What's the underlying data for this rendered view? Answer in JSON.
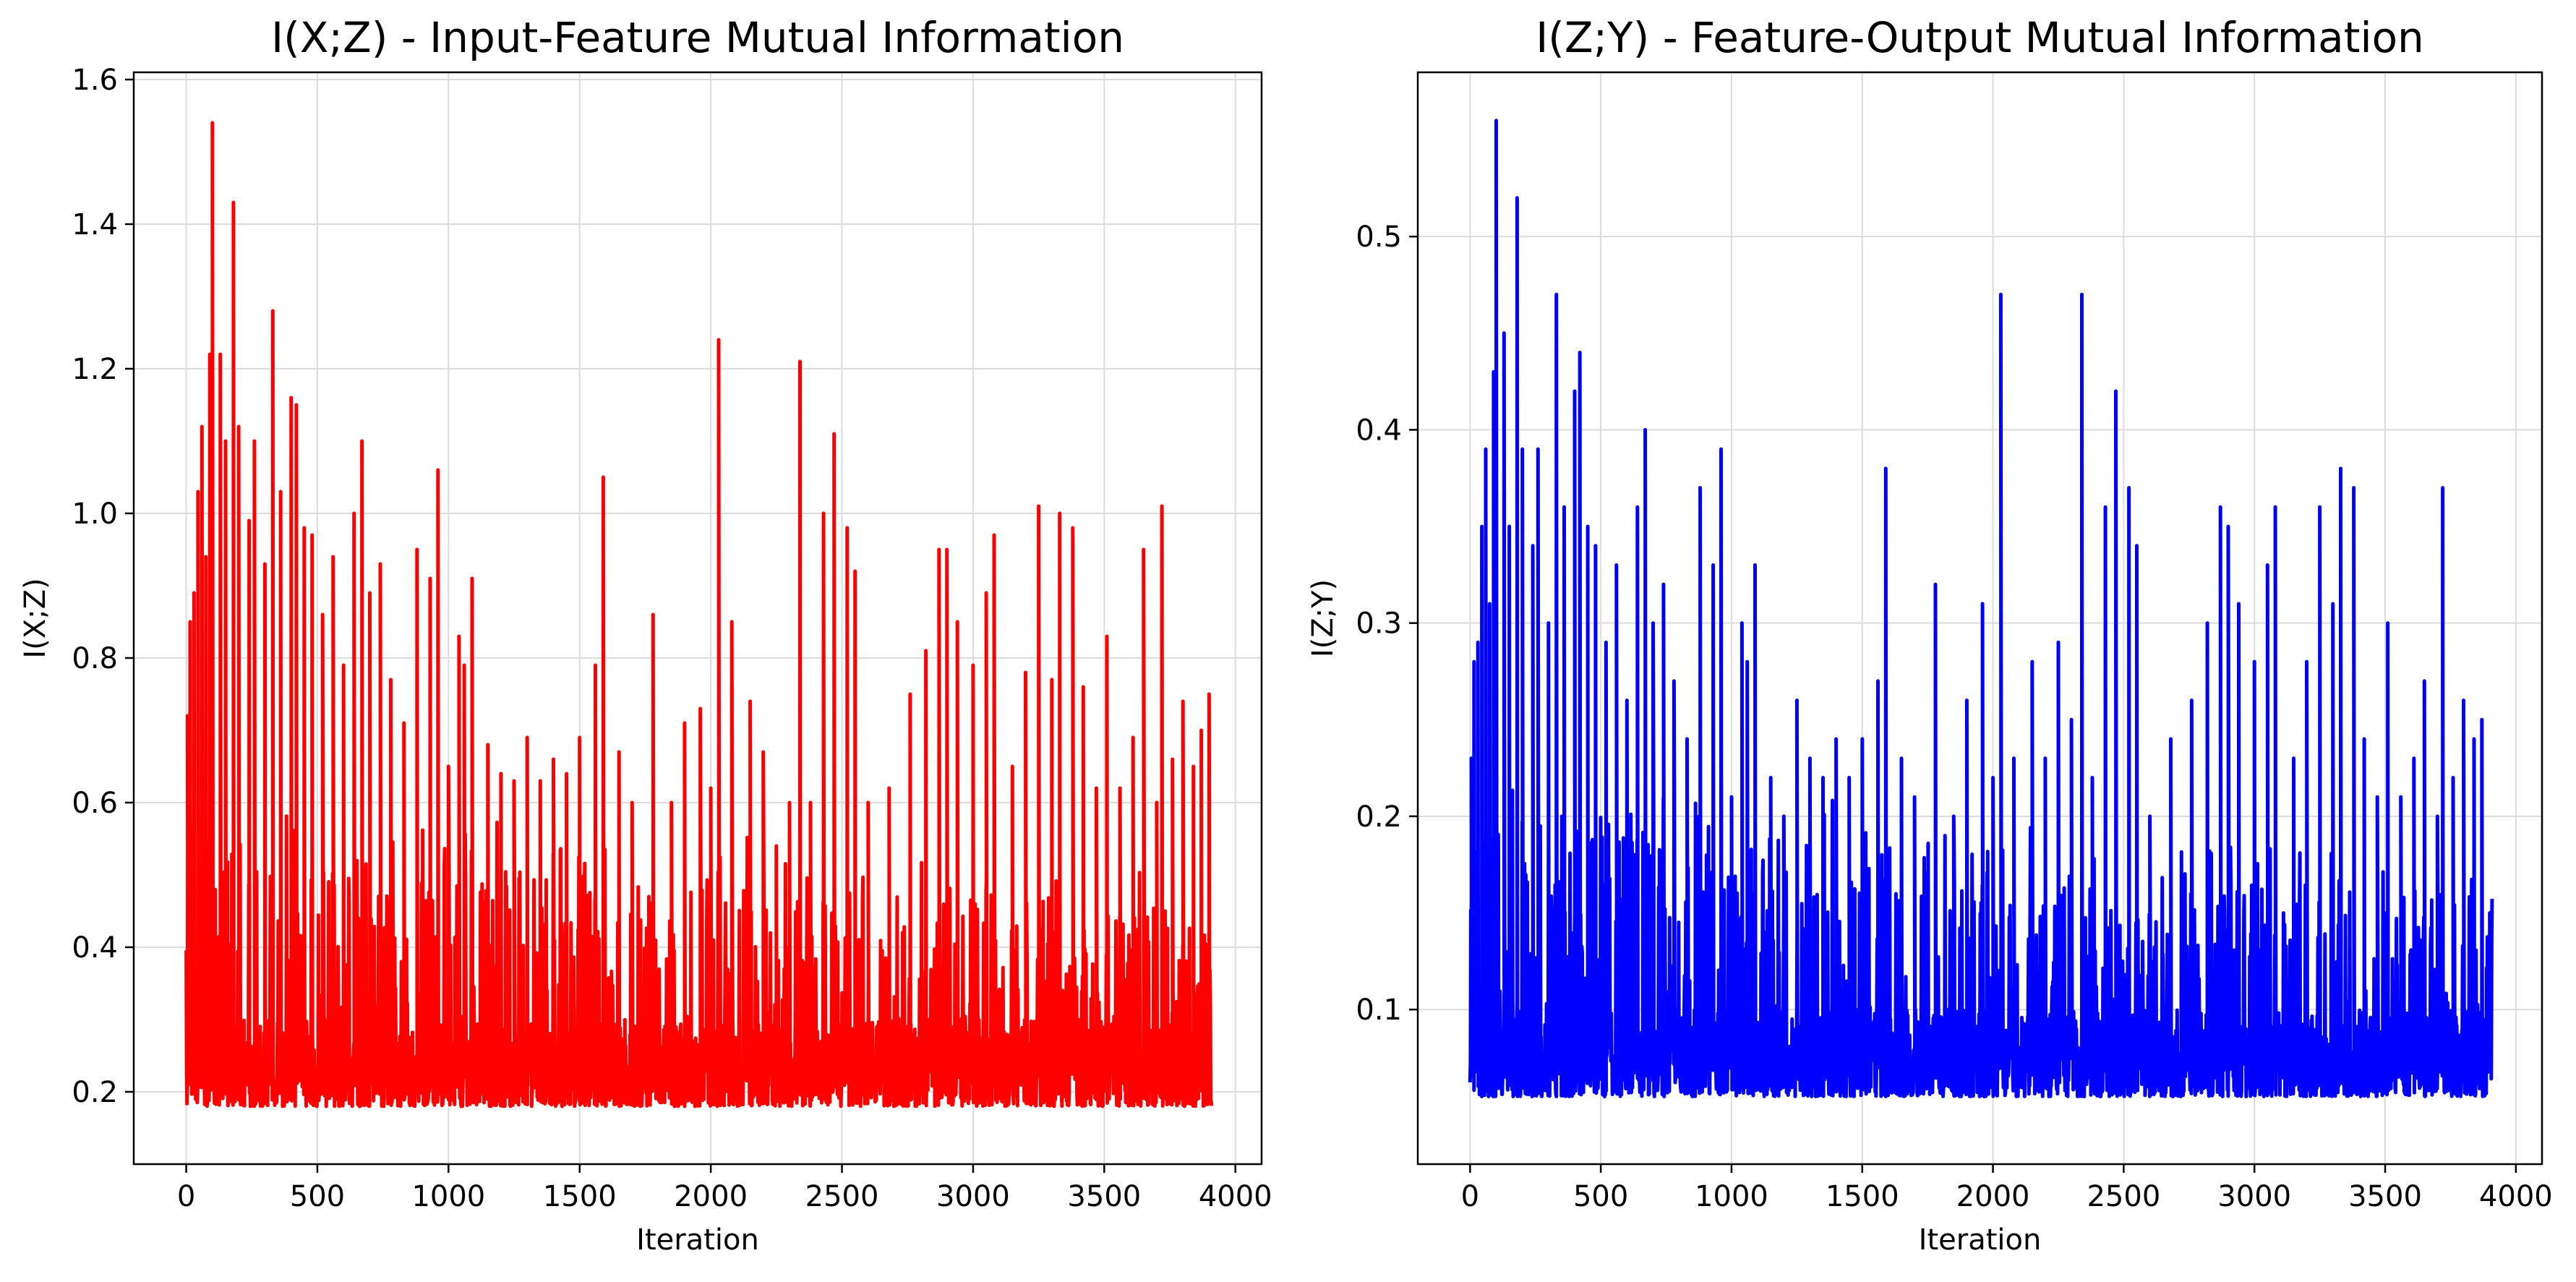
{
  "chart_data": [
    {
      "type": "line",
      "title": "I(X;Z) - Input-Feature Mutual Information",
      "xlabel": "Iteration",
      "ylabel": "I(X;Z)",
      "xlim": [
        -200,
        4100
      ],
      "ylim": [
        0.1,
        1.61
      ],
      "xticks": [
        0,
        500,
        1000,
        1500,
        2000,
        2500,
        3000,
        3500,
        4000
      ],
      "xtick_labels": [
        "0",
        "500",
        "1000",
        "1500",
        "2000",
        "2500",
        "3000",
        "3500",
        "4000"
      ],
      "yticks": [
        0.2,
        0.4,
        0.6,
        0.8,
        1.0,
        1.2,
        1.4,
        1.6
      ],
      "ytick_labels": [
        "0.2",
        "0.4",
        "0.6",
        "0.8",
        "1.0",
        "1.2",
        "1.4",
        "1.6"
      ],
      "grid": true,
      "color": "#ff0000",
      "series": [
        {
          "values_note": "",
          "x_range": [
            0,
            3910
          ],
          "baseline_min": 0.18,
          "baseline_max": 0.3,
          "peaks": [
            [
              5,
              0.72
            ],
            [
              15,
              0.85
            ],
            [
              30,
              0.89
            ],
            [
              45,
              1.03
            ],
            [
              60,
              1.12
            ],
            [
              75,
              0.94
            ],
            [
              90,
              1.22
            ],
            [
              100,
              1.54
            ],
            [
              130,
              1.22
            ],
            [
              150,
              1.1
            ],
            [
              180,
              1.43
            ],
            [
              200,
              1.12
            ],
            [
              240,
              0.99
            ],
            [
              260,
              1.1
            ],
            [
              300,
              0.93
            ],
            [
              330,
              1.28
            ],
            [
              360,
              1.03
            ],
            [
              400,
              1.16
            ],
            [
              420,
              1.15
            ],
            [
              450,
              0.98
            ],
            [
              480,
              0.97
            ],
            [
              520,
              0.86
            ],
            [
              560,
              0.94
            ],
            [
              600,
              0.79
            ],
            [
              640,
              1.0
            ],
            [
              670,
              1.1
            ],
            [
              700,
              0.89
            ],
            [
              740,
              0.93
            ],
            [
              780,
              0.77
            ],
            [
              830,
              0.71
            ],
            [
              880,
              0.95
            ],
            [
              930,
              0.91
            ],
            [
              960,
              1.06
            ],
            [
              1000,
              0.65
            ],
            [
              1040,
              0.83
            ],
            [
              1060,
              0.79
            ],
            [
              1090,
              0.91
            ],
            [
              1150,
              0.68
            ],
            [
              1200,
              0.64
            ],
            [
              1250,
              0.63
            ],
            [
              1300,
              0.69
            ],
            [
              1350,
              0.63
            ],
            [
              1400,
              0.66
            ],
            [
              1450,
              0.64
            ],
            [
              1500,
              0.69
            ],
            [
              1560,
              0.79
            ],
            [
              1590,
              1.05
            ],
            [
              1650,
              0.67
            ],
            [
              1700,
              0.6
            ],
            [
              1780,
              0.86
            ],
            [
              1850,
              0.6
            ],
            [
              1900,
              0.71
            ],
            [
              1960,
              0.73
            ],
            [
              2000,
              0.62
            ],
            [
              2030,
              1.24
            ],
            [
              2080,
              0.85
            ],
            [
              2150,
              0.74
            ],
            [
              2200,
              0.67
            ],
            [
              2250,
              0.54
            ],
            [
              2300,
              0.6
            ],
            [
              2340,
              1.21
            ],
            [
              2380,
              0.6
            ],
            [
              2430,
              1.0
            ],
            [
              2470,
              1.11
            ],
            [
              2520,
              0.98
            ],
            [
              2550,
              0.92
            ],
            [
              2600,
              0.6
            ],
            [
              2680,
              0.62
            ],
            [
              2760,
              0.75
            ],
            [
              2820,
              0.81
            ],
            [
              2870,
              0.95
            ],
            [
              2900,
              0.95
            ],
            [
              2940,
              0.85
            ],
            [
              3000,
              0.79
            ],
            [
              3050,
              0.89
            ],
            [
              3080,
              0.97
            ],
            [
              3150,
              0.65
            ],
            [
              3200,
              0.78
            ],
            [
              3250,
              1.01
            ],
            [
              3300,
              0.77
            ],
            [
              3330,
              1.0
            ],
            [
              3380,
              0.98
            ],
            [
              3420,
              0.76
            ],
            [
              3470,
              0.62
            ],
            [
              3510,
              0.83
            ],
            [
              3560,
              0.62
            ],
            [
              3610,
              0.69
            ],
            [
              3650,
              0.95
            ],
            [
              3700,
              0.6
            ],
            [
              3720,
              1.01
            ],
            [
              3760,
              0.66
            ],
            [
              3800,
              0.74
            ],
            [
              3840,
              0.65
            ],
            [
              3870,
              0.7
            ],
            [
              3900,
              0.75
            ]
          ]
        }
      ]
    },
    {
      "type": "line",
      "title": "I(Z;Y) - Feature-Output Mutual Information",
      "xlabel": "Iteration",
      "ylabel": "I(Z;Y)",
      "xlim": [
        -200,
        4100
      ],
      "ylim": [
        0.02,
        0.585
      ],
      "xticks": [
        0,
        500,
        1000,
        1500,
        2000,
        2500,
        3000,
        3500,
        4000
      ],
      "xtick_labels": [
        "0",
        "500",
        "1000",
        "1500",
        "2000",
        "2500",
        "3000",
        "3500",
        "4000"
      ],
      "yticks": [
        0.1,
        0.2,
        0.3,
        0.4,
        0.5
      ],
      "ytick_labels": [
        "0.1",
        "0.2",
        "0.3",
        "0.4",
        "0.5"
      ],
      "grid": true,
      "color": "#0000ff",
      "series": [
        {
          "values_note": "",
          "x_range": [
            0,
            3910
          ],
          "baseline_min": 0.055,
          "baseline_max": 0.1,
          "peaks": [
            [
              5,
              0.23
            ],
            [
              15,
              0.28
            ],
            [
              30,
              0.29
            ],
            [
              45,
              0.35
            ],
            [
              60,
              0.39
            ],
            [
              75,
              0.31
            ],
            [
              90,
              0.43
            ],
            [
              100,
              0.56
            ],
            [
              130,
              0.45
            ],
            [
              150,
              0.35
            ],
            [
              180,
              0.52
            ],
            [
              200,
              0.39
            ],
            [
              240,
              0.34
            ],
            [
              260,
              0.39
            ],
            [
              300,
              0.3
            ],
            [
              330,
              0.47
            ],
            [
              360,
              0.36
            ],
            [
              400,
              0.42
            ],
            [
              420,
              0.44
            ],
            [
              450,
              0.35
            ],
            [
              480,
              0.34
            ],
            [
              520,
              0.29
            ],
            [
              560,
              0.33
            ],
            [
              600,
              0.26
            ],
            [
              640,
              0.36
            ],
            [
              670,
              0.4
            ],
            [
              700,
              0.3
            ],
            [
              740,
              0.32
            ],
            [
              780,
              0.27
            ],
            [
              830,
              0.24
            ],
            [
              880,
              0.37
            ],
            [
              930,
              0.33
            ],
            [
              960,
              0.39
            ],
            [
              1000,
              0.21
            ],
            [
              1040,
              0.3
            ],
            [
              1060,
              0.28
            ],
            [
              1090,
              0.33
            ],
            [
              1150,
              0.22
            ],
            [
              1200,
              0.2
            ],
            [
              1250,
              0.26
            ],
            [
              1300,
              0.23
            ],
            [
              1350,
              0.22
            ],
            [
              1400,
              0.24
            ],
            [
              1450,
              0.22
            ],
            [
              1500,
              0.24
            ],
            [
              1560,
              0.27
            ],
            [
              1590,
              0.38
            ],
            [
              1650,
              0.23
            ],
            [
              1700,
              0.21
            ],
            [
              1780,
              0.32
            ],
            [
              1850,
              0.2
            ],
            [
              1900,
              0.26
            ],
            [
              1960,
              0.31
            ],
            [
              2000,
              0.22
            ],
            [
              2030,
              0.47
            ],
            [
              2080,
              0.23
            ],
            [
              2150,
              0.28
            ],
            [
              2200,
              0.23
            ],
            [
              2250,
              0.29
            ],
            [
              2300,
              0.25
            ],
            [
              2340,
              0.47
            ],
            [
              2380,
              0.22
            ],
            [
              2430,
              0.36
            ],
            [
              2470,
              0.42
            ],
            [
              2520,
              0.37
            ],
            [
              2550,
              0.34
            ],
            [
              2600,
              0.2
            ],
            [
              2680,
              0.24
            ],
            [
              2760,
              0.26
            ],
            [
              2820,
              0.3
            ],
            [
              2870,
              0.36
            ],
            [
              2900,
              0.35
            ],
            [
              2940,
              0.31
            ],
            [
              3000,
              0.28
            ],
            [
              3050,
              0.33
            ],
            [
              3080,
              0.36
            ],
            [
              3150,
              0.23
            ],
            [
              3200,
              0.28
            ],
            [
              3250,
              0.36
            ],
            [
              3300,
              0.31
            ],
            [
              3330,
              0.38
            ],
            [
              3380,
              0.37
            ],
            [
              3420,
              0.24
            ],
            [
              3470,
              0.21
            ],
            [
              3510,
              0.3
            ],
            [
              3560,
              0.21
            ],
            [
              3610,
              0.23
            ],
            [
              3650,
              0.27
            ],
            [
              3700,
              0.2
            ],
            [
              3720,
              0.37
            ],
            [
              3760,
              0.22
            ],
            [
              3800,
              0.26
            ],
            [
              3840,
              0.24
            ],
            [
              3870,
              0.25
            ],
            [
              3900,
              0.15
            ]
          ]
        }
      ]
    }
  ]
}
